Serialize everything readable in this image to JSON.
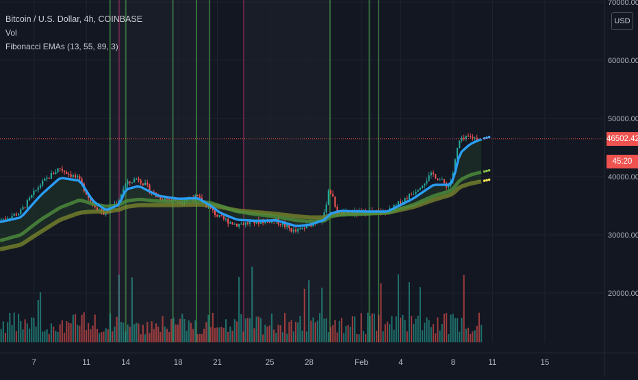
{
  "legend": {
    "title": "Bitcoin / U.S. Dollar, 4h, COINBASE",
    "vol": "Vol",
    "indicator": "Fibonacci EMAs (13, 55, 89, 3)"
  },
  "currency_button": "USD",
  "last_price_label": "46502.42",
  "countdown_label": "45:20",
  "colors": {
    "background": "#131722",
    "grid": "#1f2330",
    "up": "#26a69a",
    "down": "#ef5350",
    "ema13": "#2a9df4",
    "ema55": "#4f8f3c",
    "ema89": "#7e8a2c",
    "green_vline": "#4caf50",
    "red_vline": "#b0326a"
  },
  "chart_data": {
    "type": "candlestick",
    "symbol": "Bitcoin / U.S. Dollar",
    "interval": "4h",
    "exchange": "COINBASE",
    "indicators": [
      "Vol",
      "Fibonacci EMAs (13, 55, 89, 3)"
    ],
    "y_ticks": [
      "70000.00",
      "60000.00",
      "50000.00",
      "40000.00",
      "30000.00",
      "20000.00"
    ],
    "y_tick_values": [
      70000,
      60000,
      50000,
      40000,
      30000,
      20000
    ],
    "x_ticks": [
      "7",
      "11",
      "14",
      "18",
      "21",
      "25",
      "28",
      "Feb",
      "4",
      "8",
      "11",
      "15"
    ],
    "x_tick_days": [
      7,
      11,
      14,
      18,
      21,
      25,
      28,
      32,
      35,
      39,
      42,
      46
    ],
    "x_range_days": [
      4.4,
      50.5
    ],
    "last_price": 46502.42,
    "countdown": "45:20",
    "price_keypoints_days": [
      4.4,
      6.0,
      7.5,
      9.0,
      10.5,
      11.5,
      12.5,
      13.5,
      14.0,
      15.0,
      16.5,
      18.0,
      19.5,
      20.5,
      21.2,
      22.5,
      24.0,
      25.5,
      27.0,
      28.0,
      29.2,
      29.6,
      30.3,
      32.5,
      34.0,
      36.0,
      37.5,
      38.7,
      39.0,
      39.5,
      40.3,
      41.2
    ],
    "price_keypoints_values": [
      32500,
      33800,
      38500,
      41500,
      39500,
      35500,
      33500,
      35800,
      38500,
      39800,
      36500,
      35800,
      36500,
      34500,
      33000,
      31800,
      32200,
      32500,
      30500,
      31500,
      33000,
      38200,
      33500,
      34000,
      33800,
      37200,
      40500,
      38300,
      39800,
      46000,
      46800,
      46450
    ],
    "ema13_keypoints_values": [
      32200,
      33000,
      36800,
      39800,
      39300,
      35800,
      34200,
      35200,
      37800,
      38400,
      36700,
      36200,
      36300,
      35000,
      33800,
      32600,
      32400,
      32500,
      31500,
      31700,
      32600,
      33600,
      34100,
      34000,
      34000,
      36300,
      38600,
      38600,
      39300,
      44000,
      45600,
      46500
    ],
    "ema55_keypoints_values": [
      29000,
      30000,
      32600,
      34700,
      36000,
      35300,
      34900,
      35100,
      35800,
      36100,
      35800,
      35700,
      35800,
      35500,
      35000,
      34000,
      33500,
      33100,
      32500,
      32300,
      32400,
      33100,
      33400,
      33600,
      33800,
      35200,
      36700,
      37500,
      37900,
      39400,
      40300,
      40800
    ],
    "ema89_keypoints_values": [
      27500,
      28300,
      30500,
      32600,
      33800,
      34000,
      34000,
      34300,
      34800,
      35100,
      35100,
      35100,
      35200,
      35100,
      34800,
      34200,
      33900,
      33600,
      33200,
      33000,
      33000,
      33400,
      33600,
      33700,
      33800,
      34800,
      36000,
      36800,
      37100,
      38200,
      38800,
      39200
    ],
    "volume_max": 27000,
    "green_vline_days": [
      12.8,
      14.0,
      17.6,
      19.4,
      20.4,
      29.6,
      32.6,
      33.3
    ],
    "red_vline_days": [
      13.5,
      23.0
    ]
  }
}
